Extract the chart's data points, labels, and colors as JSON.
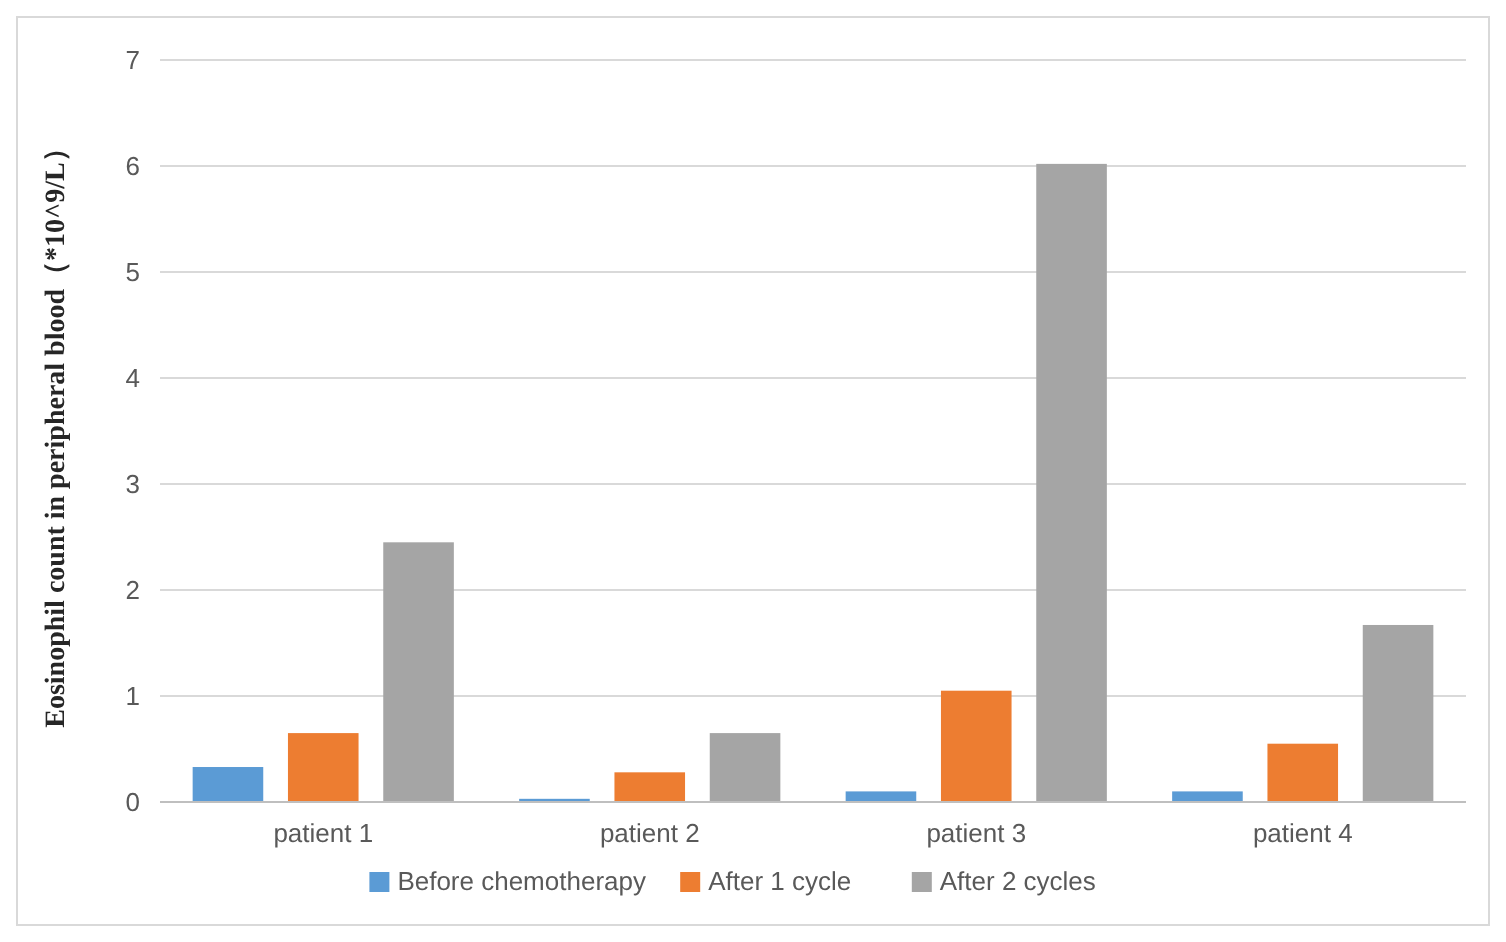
{
  "chart_data": {
    "type": "bar",
    "ylabel": "Eosinophil count in peripheral blood（*10^9/L）",
    "categories": [
      "patient 1",
      "patient 2",
      "patient 3",
      "patient 4"
    ],
    "series": [
      {
        "name": "Before chemotherapy",
        "color": "#5b9bd5",
        "values": [
          0.33,
          0.03,
          0.1,
          0.1
        ]
      },
      {
        "name": "After 1 cycle",
        "color": "#ed7d31",
        "values": [
          0.65,
          0.28,
          1.05,
          0.55
        ]
      },
      {
        "name": "After 2 cycles",
        "color": "#a5a5a5",
        "values": [
          2.45,
          0.65,
          6.02,
          1.67
        ]
      }
    ],
    "ylim": [
      0,
      7
    ],
    "yticks": [
      0,
      1,
      2,
      3,
      4,
      5,
      6,
      7
    ],
    "grid": "y",
    "legend": "bottom"
  }
}
